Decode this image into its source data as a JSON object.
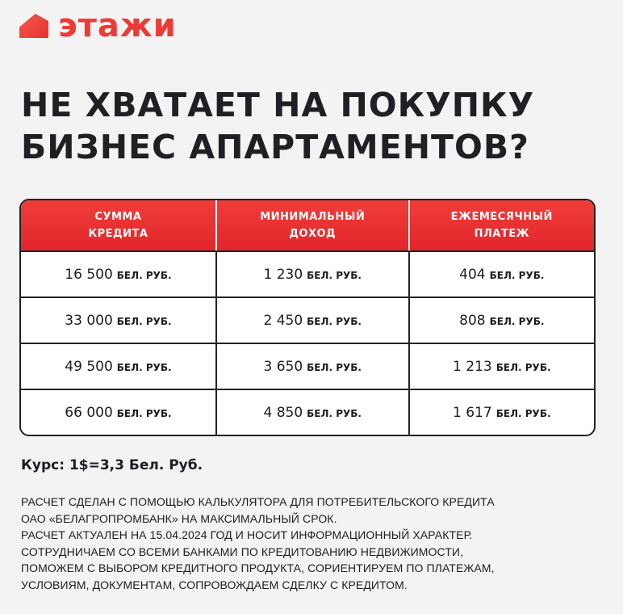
{
  "brand": {
    "name": "этажи",
    "color": "#ee3a36"
  },
  "title": [
    "НЕ ХВАТАЕТ НА ПОКУПКУ",
    "БИЗНЕС АПАРТАМЕНТОВ?"
  ],
  "table": {
    "headers": [
      [
        "СУММА",
        "КРЕДИТА"
      ],
      [
        "МИНИМАЛЬНЫЙ",
        "ДОХОД"
      ],
      [
        "ЕЖЕМЕСЯЧНЫЙ",
        "ПЛАТЕЖ"
      ]
    ],
    "unit": "БЕЛ. РУБ.",
    "rows": [
      [
        "16 500",
        "1 230",
        "404"
      ],
      [
        "33 000",
        "2 450",
        "808"
      ],
      [
        "49 500",
        "3 650",
        "1 213"
      ],
      [
        "66 000",
        "4 850",
        "1 617"
      ]
    ]
  },
  "rate": "Курс: 1$=3,3 Бел. Руб.",
  "note": [
    "РАСЧЕТ СДЕЛАН С ПОМОЩЬЮ КАЛЬКУЛЯТОРА ДЛЯ ПОТРЕБИТЕЛЬСКОГО КРЕДИТА",
    "ОАО «БЕЛАГРОПРОМБАНК» НА МАКСИМАЛЬНЫЙ СРОК.",
    "РАСЧЕТ АКТУАЛЕН НА 15.04.2024 ГОД И НОСИТ ИНФОРМАЦИОННЫЙ ХАРАКТЕР.",
    "СОТРУДНИЧАЕМ СО ВСЕМИ БАНКАМИ ПО КРЕДИТОВАНИЮ НЕДВИЖИМОСТИ,",
    "ПОМОЖЕМ С ВЫБОРОМ КРЕДИТНОГО ПРОДУКТА, СОРИЕНТИРУЕМ ПО ПЛАТЕЖАМ,",
    "УСЛОВИЯМ, ДОКУМЕНТАМ, СОПРОВОЖДАЕМ СДЕЛКУ С КРЕДИТОМ."
  ]
}
